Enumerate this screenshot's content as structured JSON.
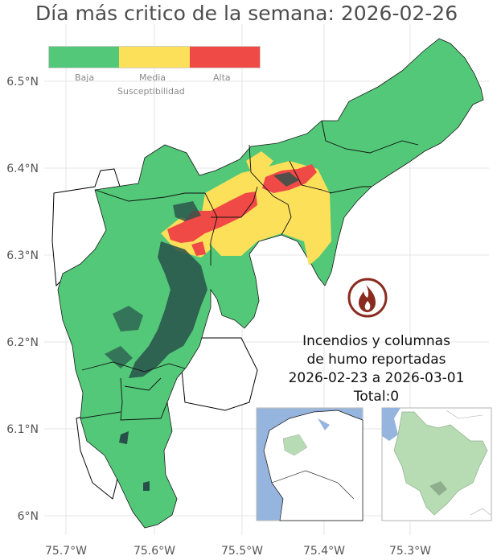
{
  "title": "Día más critico de la semana: 2026-02-26",
  "axes": {
    "y_ticks": [
      "6.5°N",
      "6.4°N",
      "6.3°N",
      "6.2°N",
      "6.1°N",
      "6°N"
    ],
    "x_ticks": [
      "75.7°W",
      "75.6°W",
      "75.5°W",
      "75.4°W",
      "75.3°W"
    ]
  },
  "legend": {
    "title": "Susceptibilidad",
    "items": [
      {
        "label": "Baja",
        "color": "#52c878"
      },
      {
        "label": "Media",
        "color": "#fde05a"
      },
      {
        "label": "Alta",
        "color": "#f04a47"
      }
    ]
  },
  "report": {
    "line1": "Incendios y columnas",
    "line2": "de humo reportadas",
    "line3": "2026-02-23 a 2026-03-01",
    "line4": "Total:0"
  },
  "colors": {
    "baja": "#52c878",
    "media": "#fde05a",
    "alta": "#f04a47",
    "dense_forest": "#28504a",
    "grid": "#e4e4e4",
    "sea": "#95b4de",
    "highlight": "#b7dcb4",
    "fire_icon_ring": "#8b2b1f"
  },
  "icons": [
    "fire-icon"
  ]
}
